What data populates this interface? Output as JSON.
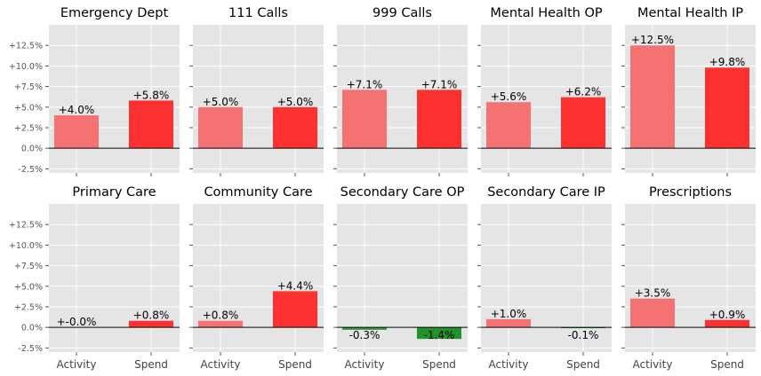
{
  "chart_data": {
    "type": "bar",
    "categories": [
      "Activity",
      "Spend"
    ],
    "ylim": [
      -3,
      15
    ],
    "yticks": [
      -2.5,
      0,
      2.5,
      5,
      7.5,
      10,
      12.5
    ],
    "ytick_labels": [
      "-2.5%",
      "0.0%",
      "+2.5%",
      "+5.0%",
      "+7.5%",
      "+10.0%",
      "+12.5%"
    ],
    "grid": true,
    "panels": [
      {
        "title": "Emergency Dept",
        "values": [
          4.0,
          5.8
        ],
        "labels": [
          "+4.0%",
          "+5.8%"
        ]
      },
      {
        "title": "111 Calls",
        "values": [
          5.0,
          5.0
        ],
        "labels": [
          "+5.0%",
          "+5.0%"
        ]
      },
      {
        "title": "999 Calls",
        "values": [
          7.1,
          7.1
        ],
        "labels": [
          "+7.1%",
          "+7.1%"
        ]
      },
      {
        "title": "Mental Health OP",
        "values": [
          5.6,
          6.2
        ],
        "labels": [
          "+5.6%",
          "+6.2%"
        ]
      },
      {
        "title": "Mental Health IP",
        "values": [
          12.5,
          9.8
        ],
        "labels": [
          "+12.5%",
          "+9.8%"
        ]
      },
      {
        "title": "Primary Care",
        "values": [
          0.0,
          0.8
        ],
        "labels": [
          "+-0.0%",
          "+0.8%"
        ]
      },
      {
        "title": "Community Care",
        "values": [
          0.8,
          4.4
        ],
        "labels": [
          "+0.8%",
          "+4.4%"
        ]
      },
      {
        "title": "Secondary Care OP",
        "values": [
          -0.3,
          -1.4
        ],
        "labels": [
          "-0.3%",
          "-1.4%"
        ]
      },
      {
        "title": "Secondary Care IP",
        "values": [
          1.0,
          -0.1
        ],
        "labels": [
          "+1.0%",
          "-0.1%"
        ]
      },
      {
        "title": "Prescriptions",
        "values": [
          3.5,
          0.9
        ],
        "labels": [
          "+3.5%",
          "+0.9%"
        ]
      }
    ],
    "colors": {
      "activity_positive": "#f47272",
      "spend_positive": "#fe3131",
      "activity_negative": "#3a9a3a",
      "spend_negative": "#22932b",
      "panel_bg": "#e5e5e5",
      "grid": "#ffffff",
      "zero_line": "#000000"
    }
  }
}
